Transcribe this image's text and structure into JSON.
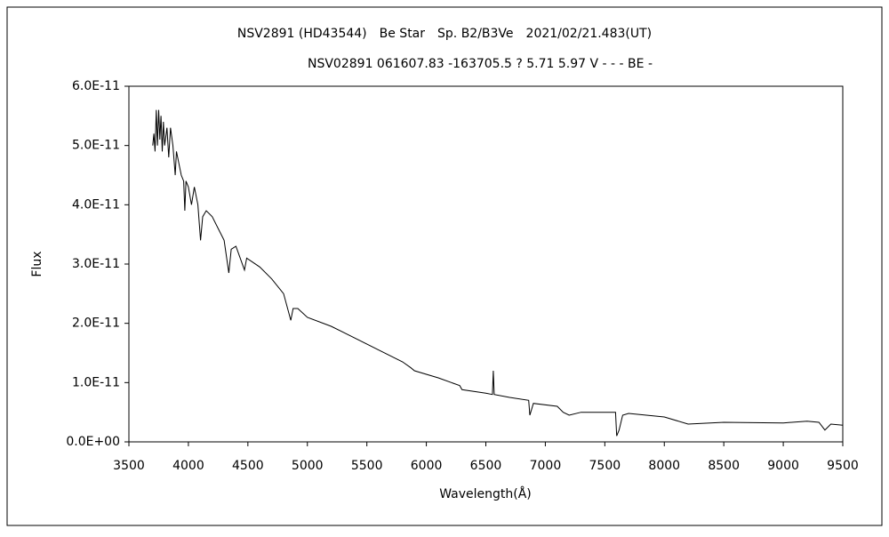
{
  "chart_data": {
    "type": "line",
    "title": "NSV2891 (HD43544)　Be Star　Sp. B2/B3Ve　2021/02/21.483(UT)",
    "subtitle": "NSV02891 061607.83 -163705.5 ? 5.71 5.97 V - - - BE -",
    "x_label": "Wavelength(Å)",
    "y_label": "Flux",
    "x": [
      3700,
      3710,
      3720,
      3730,
      3740,
      3750,
      3760,
      3770,
      3780,
      3790,
      3800,
      3820,
      3835,
      3850,
      3870,
      3889,
      3900,
      3920,
      3940,
      3960,
      3970,
      3980,
      4000,
      4026,
      4050,
      4080,
      4102,
      4120,
      4150,
      4200,
      4250,
      4300,
      4340,
      4360,
      4400,
      4471,
      4490,
      4600,
      4700,
      4800,
      4861,
      4880,
      4920,
      5000,
      5200,
      5400,
      5600,
      5800,
      5870,
      5900,
      6100,
      6280,
      6300,
      6500,
      6555,
      6563,
      6570,
      6700,
      6860,
      6870,
      6900,
      7100,
      7150,
      7200,
      7300,
      7500,
      7590,
      7600,
      7620,
      7650,
      7700,
      8000,
      8200,
      8500,
      9000,
      9200,
      9300,
      9350,
      9400,
      9500
    ],
    "series": [
      {
        "name": "Flux",
        "color": "#000000",
        "values": [
          5e-11,
          5.2e-11,
          4.9e-11,
          5.6e-11,
          5e-11,
          5.6e-11,
          5.1e-11,
          5.5e-11,
          4.9e-11,
          5.4e-11,
          5e-11,
          5.3e-11,
          4.8e-11,
          5.3e-11,
          5e-11,
          4.5e-11,
          4.9e-11,
          4.7e-11,
          4.5e-11,
          4.4e-11,
          3.9e-11,
          4.4e-11,
          4.3e-11,
          4e-11,
          4.3e-11,
          4e-11,
          3.4e-11,
          3.8e-11,
          3.9e-11,
          3.8e-11,
          3.6e-11,
          3.4e-11,
          2.85e-11,
          3.25e-11,
          3.3e-11,
          2.9e-11,
          3.1e-11,
          2.95e-11,
          2.75e-11,
          2.5e-11,
          2.05e-11,
          2.25e-11,
          2.25e-11,
          2.1e-11,
          1.95e-11,
          1.75e-11,
          1.55e-11,
          1.35e-11,
          1.25e-11,
          1.2e-11,
          1.08e-11,
          9.5e-12,
          8.8e-12,
          8.2e-12,
          8e-12,
          1.2e-11,
          8e-12,
          7.5e-12,
          7e-12,
          4.5e-12,
          6.5e-12,
          6e-12,
          5e-12,
          4.5e-12,
          5e-12,
          5e-12,
          5e-12,
          1e-12,
          2e-12,
          4.5e-12,
          4.8e-12,
          4.2e-12,
          3e-12,
          3.3e-12,
          3.2e-12,
          3.5e-12,
          3.3e-12,
          2e-12,
          3e-12,
          2.8e-12
        ]
      }
    ],
    "xlim": [
      3500,
      9500
    ],
    "xticks": [
      3500,
      4000,
      4500,
      5000,
      5500,
      6000,
      6500,
      7000,
      7500,
      8000,
      8500,
      9000,
      9500
    ],
    "ylim": [
      0,
      6e-11
    ],
    "yticks": [
      {
        "value": 0,
        "label": "0.0E+00"
      },
      {
        "value": 1e-11,
        "label": "1.0E-11"
      },
      {
        "value": 2e-11,
        "label": "2.0E-11"
      },
      {
        "value": 3e-11,
        "label": "3.0E-11"
      },
      {
        "value": 4e-11,
        "label": "4.0E-11"
      },
      {
        "value": 5e-11,
        "label": "5.0E-11"
      },
      {
        "value": 6e-11,
        "label": "6.0E-11"
      }
    ],
    "grid": false
  }
}
